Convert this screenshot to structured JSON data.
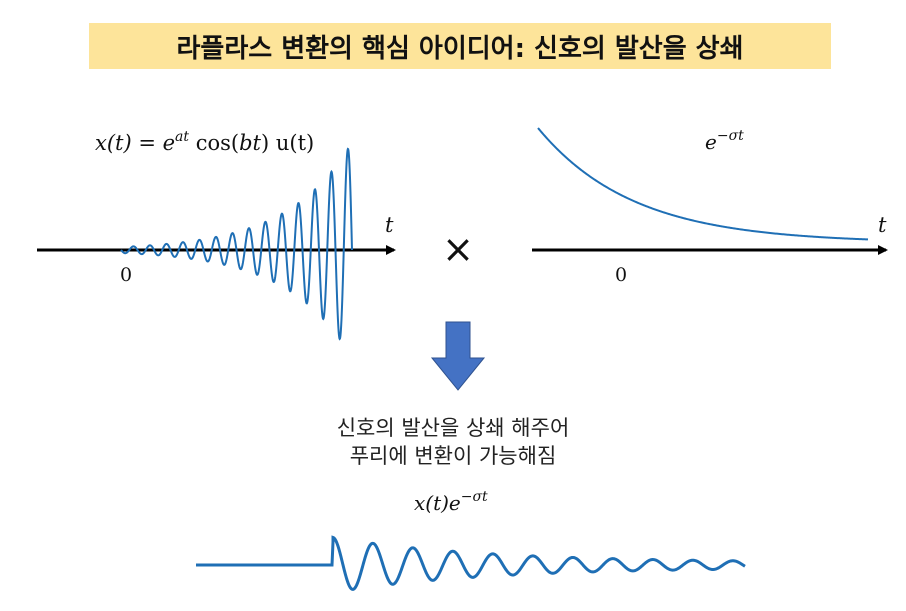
{
  "title": "라플라스 변환의 핵심 아이디어: 신호의 발산을 상쇄",
  "left_plot": {
    "formula_pre": "x(t) = e",
    "formula_sup": "at",
    "formula_mid": " cos(",
    "formula_arg": "bt",
    "formula_post": ") u(t)",
    "axis_label": "t",
    "origin_label": "0"
  },
  "multiply_symbol": "×",
  "right_plot": {
    "formula_base": "e",
    "formula_sup": "−σt",
    "axis_label": "t",
    "origin_label": "0"
  },
  "caption_line1": "신호의 발산을 상쇄 해주어",
  "caption_line2": "푸리에 변환이 가능해짐",
  "result_formula": {
    "pre": "x(t)e",
    "sup": "−σt"
  },
  "colors": {
    "curve": "#1f6fb5",
    "arrow_fill": "#4472c4",
    "title_bg": "#fde49a",
    "axis": "#000000"
  }
}
